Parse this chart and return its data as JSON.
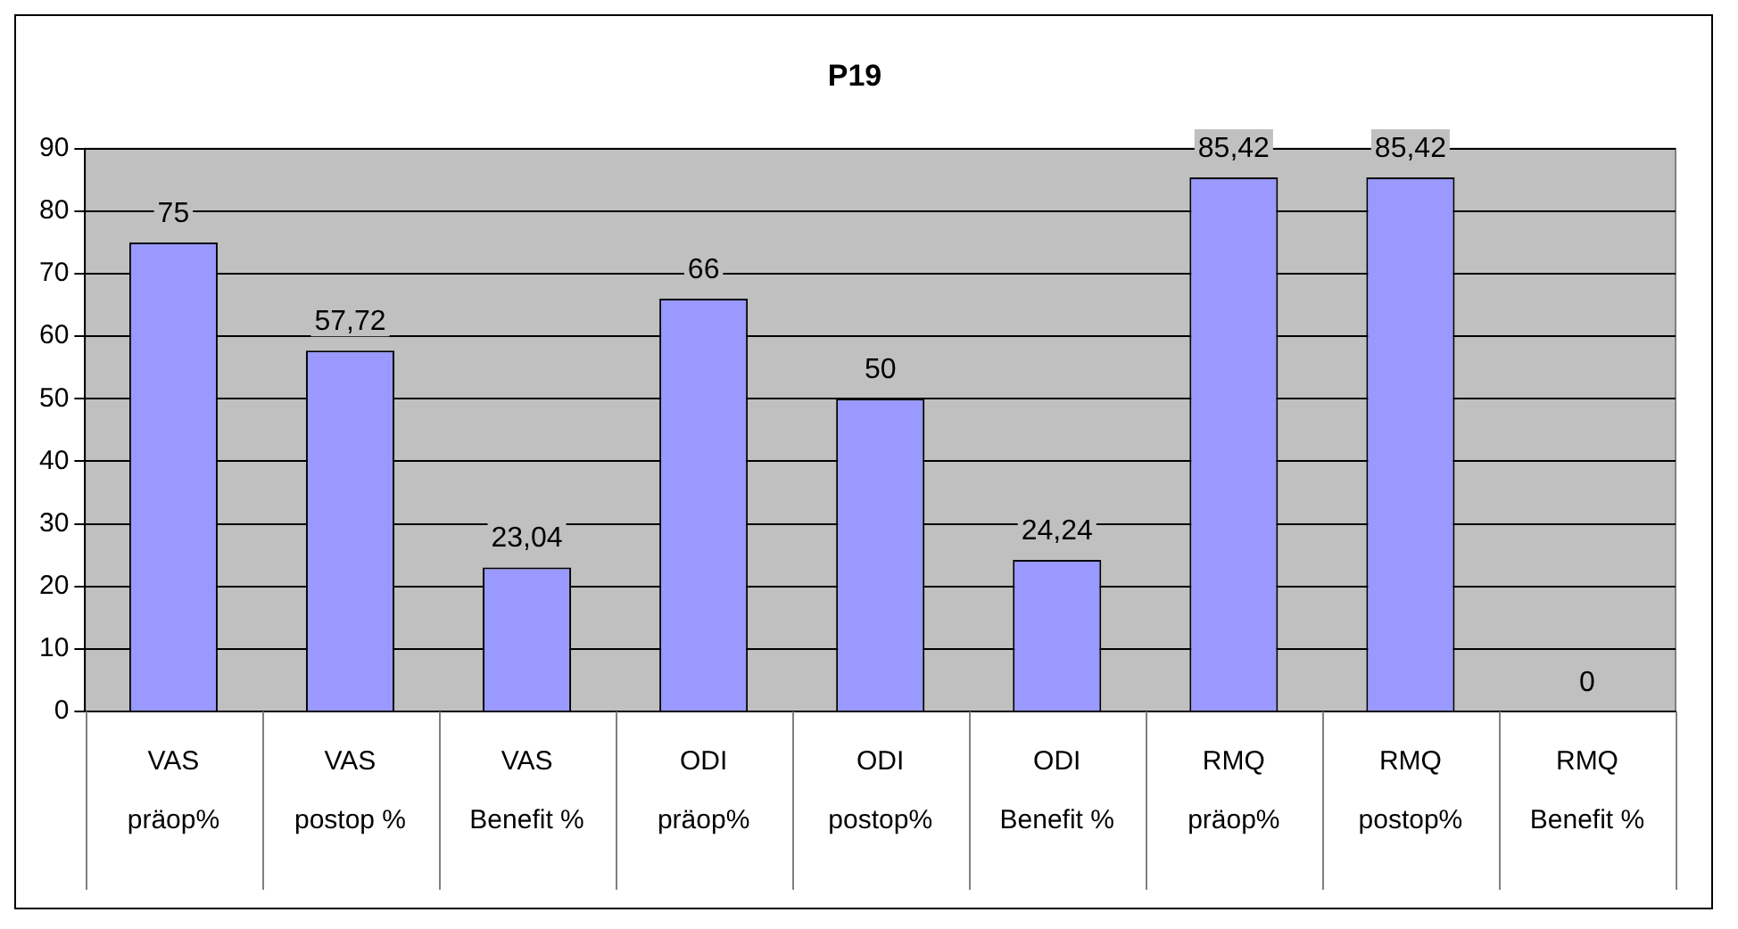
{
  "chart_data": {
    "type": "bar",
    "title": "P19",
    "categories": [
      "VAS präop%",
      "VAS postop %",
      "VAS Benefit %",
      "ODI präop%",
      "ODI postop%",
      "ODI Benefit %",
      "RMQ präop%",
      "RMQ postop%",
      "RMQ Benefit %"
    ],
    "values": [
      75,
      57.72,
      23.04,
      66,
      50,
      24.24,
      85.42,
      85.42,
      0
    ],
    "value_labels": [
      "75",
      "57,72",
      "23,04",
      "66",
      "50",
      "24,24",
      "85,42",
      "85,42",
      "0"
    ],
    "color": "#9999ff",
    "ylim": [
      0,
      90
    ],
    "yticks": [
      0,
      10,
      20,
      30,
      40,
      50,
      60,
      70,
      80,
      90
    ],
    "grid": "y",
    "legend": false
  }
}
